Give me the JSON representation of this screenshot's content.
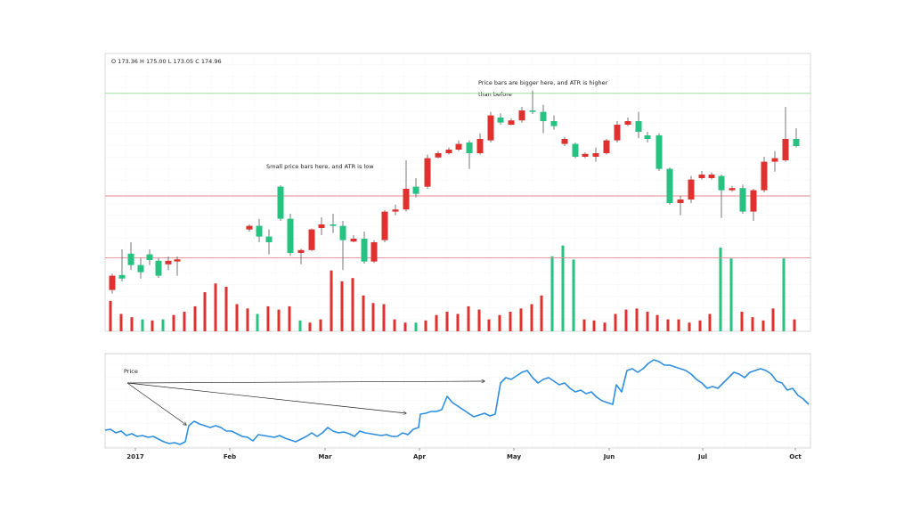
{
  "chart_data": [
    {
      "type": "candlestick",
      "header": "O 173.36 H 175.00 L 173.05 C 174.96",
      "annotations": [
        "Small price bars here, and ATR is low",
        "Price bars are bigger here, and ATR is higher",
        "than before"
      ],
      "xlim": [
        0,
        792
      ],
      "ylim": [
        148,
        187
      ],
      "up_color": "#e0312f",
      "down_color": "#26c281",
      "x": [
        8,
        19,
        29,
        40,
        50,
        60,
        71,
        81,
        162,
        173,
        184,
        197,
        208,
        220,
        232,
        243,
        256,
        267,
        279,
        291,
        302,
        314,
        326,
        338,
        349,
        362,
        374,
        386,
        397,
        409,
        421,
        433,
        444,
        456,
        468,
        480,
        492,
        504,
        516,
        528,
        539,
        551,
        563,
        575,
        587,
        599,
        609,
        622,
        634,
        646,
        658,
        670,
        681,
        692,
        704,
        716,
        728,
        740,
        752,
        764,
        776
      ],
      "open": [
        153.8,
        155.9,
        158.9,
        157.3,
        158.8,
        157.9,
        157.4,
        157.8,
        162.3,
        162.8,
        161.3,
        168.3,
        163.8,
        159.0,
        159.4,
        162.5,
        163.0,
        162.8,
        160.6,
        161.0,
        157.8,
        160.8,
        164.8,
        165.1,
        168.3,
        168.3,
        172.4,
        173.0,
        173.5,
        174.5,
        173.0,
        174.8,
        178.0,
        177.0,
        177.6,
        179.0,
        178.8,
        177.5,
        174.3,
        174.3,
        172.5,
        172.5,
        173.0,
        174.8,
        177.0,
        177.5,
        175.5,
        175.5,
        170.8,
        166.0,
        166.5,
        169.5,
        169.5,
        169.8,
        167.8,
        168.1,
        164.8,
        167.8,
        171.8,
        172.0,
        175.0
      ],
      "high": [
        156.1,
        159.5,
        160.5,
        158.3,
        159.5,
        158.3,
        158.5,
        158.5,
        163.0,
        163.8,
        162.3,
        168.5,
        164.5,
        159.6,
        162.4,
        164.0,
        164.5,
        163.5,
        161.5,
        162.0,
        160.8,
        165.0,
        165.8,
        172.0,
        169.5,
        172.8,
        173.3,
        173.8,
        174.8,
        174.8,
        175.8,
        178.8,
        178.6,
        177.9,
        179.5,
        181.8,
        179.8,
        178.3,
        175.3,
        174.5,
        173.1,
        173.8,
        175.0,
        177.5,
        178.0,
        178.8,
        176.0,
        175.8,
        171.0,
        167.0,
        169.8,
        170.5,
        170.3,
        170.0,
        168.4,
        168.6,
        168.0,
        172.5,
        173.3,
        179.5,
        176.5
      ],
      "low": [
        153.3,
        155.0,
        156.6,
        155.4,
        157.3,
        155.5,
        156.6,
        155.8,
        162.0,
        160.5,
        158.8,
        163.5,
        158.6,
        157.4,
        159.3,
        161.5,
        161.8,
        156.6,
        160.5,
        157.5,
        157.6,
        160.5,
        164.3,
        164.8,
        166.8,
        168.0,
        172.3,
        172.8,
        173.3,
        170.8,
        172.8,
        174.5,
        177.0,
        176.9,
        177.3,
        178.5,
        175.8,
        176.3,
        174.0,
        172.3,
        172.3,
        171.8,
        172.8,
        174.5,
        176.8,
        175.1,
        174.5,
        170.5,
        165.8,
        164.3,
        166.0,
        169.3,
        169.3,
        163.9,
        167.6,
        164.5,
        163.5,
        167.5,
        170.4,
        171.8,
        173.8
      ],
      "close": [
        155.8,
        155.4,
        157.3,
        156.3,
        158.0,
        155.8,
        157.9,
        158.1,
        162.8,
        161.3,
        160.5,
        163.8,
        159.0,
        159.4,
        162.3,
        163.0,
        162.8,
        160.8,
        161.0,
        157.8,
        160.5,
        164.8,
        165.1,
        168.0,
        167.3,
        172.3,
        173.0,
        173.5,
        174.3,
        173.0,
        175.0,
        178.3,
        177.3,
        177.6,
        179.0,
        178.8,
        177.5,
        176.8,
        175.0,
        172.5,
        172.9,
        173.0,
        174.8,
        177.0,
        177.5,
        176.0,
        175.0,
        170.8,
        166.0,
        166.5,
        169.3,
        170.0,
        170.0,
        167.8,
        168.1,
        164.8,
        167.8,
        171.8,
        172.3,
        175.0,
        174.0
      ],
      "reference_lines": [
        {
          "value": 181.4,
          "color": "#8fd88f"
        },
        {
          "value": 167.0,
          "color": "#e58a8a"
        },
        {
          "value": 158.3,
          "color": "#e58a8a"
        }
      ],
      "volume": {
        "ylim": [
          0,
          100
        ],
        "x": [
          6,
          18,
          30,
          42,
          53,
          65,
          77,
          89,
          101,
          112,
          124,
          136,
          148,
          160,
          171,
          183,
          195,
          207,
          219,
          230,
          242,
          254,
          266,
          278,
          290,
          301,
          313,
          325,
          337,
          349,
          360,
          372,
          384,
          396,
          408,
          420,
          431,
          443,
          455,
          467,
          479,
          490,
          502,
          514,
          526,
          538,
          549,
          561,
          573,
          585,
          597,
          609,
          620,
          632,
          644,
          656,
          668,
          679,
          691,
          703,
          715,
          727,
          739,
          750,
          762,
          774
        ],
        "values": [
          28,
          16,
          13,
          11,
          10,
          11,
          15,
          18,
          23,
          36,
          44,
          41,
          25,
          21,
          16,
          23,
          20,
          23,
          10,
          8,
          11,
          56,
          46,
          49,
          33,
          26,
          25,
          11,
          8,
          8,
          10,
          15,
          18,
          16,
          23,
          20,
          11,
          15,
          18,
          21,
          25,
          33,
          69,
          79,
          66,
          11,
          10,
          8,
          16,
          20,
          21,
          18,
          15,
          11,
          11,
          8,
          10,
          16,
          77,
          67,
          18,
          13,
          10,
          21,
          67,
          11
        ],
        "colors": [
          "#e0312f",
          "#e0312f",
          "#e0312f",
          "#26c281",
          "#e0312f",
          "#26c281",
          "#e0312f",
          "#e0312f",
          "#e0312f",
          "#e0312f",
          "#e0312f",
          "#e0312f",
          "#e0312f",
          "#e0312f",
          "#26c281",
          "#e0312f",
          "#e0312f",
          "#e0312f",
          "#26c281",
          "#e0312f",
          "#e0312f",
          "#e0312f",
          "#e0312f",
          "#e0312f",
          "#e0312f",
          "#e0312f",
          "#e0312f",
          "#e0312f",
          "#e0312f",
          "#26c281",
          "#e0312f",
          "#e0312f",
          "#e0312f",
          "#e0312f",
          "#e0312f",
          "#e0312f",
          "#e0312f",
          "#e0312f",
          "#e0312f",
          "#e0312f",
          "#e0312f",
          "#e0312f",
          "#26c281",
          "#26c281",
          "#26c281",
          "#e0312f",
          "#e0312f",
          "#e0312f",
          "#e0312f",
          "#e0312f",
          "#e0312f",
          "#e0312f",
          "#e0312f",
          "#e0312f",
          "#e0312f",
          "#e0312f",
          "#e0312f",
          "#e0312f",
          "#26c281",
          "#26c281",
          "#e0312f",
          "#e0312f",
          "#e0312f",
          "#e0312f",
          "#26c281",
          "#e0312f"
        ]
      }
    },
    {
      "type": "line",
      "annotation": "Price",
      "color": "#2e8fe0",
      "xlim": [
        0,
        792
      ],
      "ylim": [
        0,
        106
      ],
      "xticks": [
        {
          "value": 34,
          "label": "2017"
        },
        {
          "value": 140,
          "label": "Feb"
        },
        {
          "value": 247,
          "label": "Mar"
        },
        {
          "value": 353,
          "label": "Apr"
        },
        {
          "value": 459,
          "label": "May"
        },
        {
          "value": 566,
          "label": "Jun"
        },
        {
          "value": 671,
          "label": "Jul"
        },
        {
          "value": 775,
          "label": "Oct"
        }
      ],
      "x": [
        0,
        6,
        12,
        18,
        24,
        30,
        36,
        42,
        48,
        54,
        60,
        66,
        72,
        78,
        84,
        90,
        94,
        100,
        106,
        112,
        118,
        124,
        130,
        136,
        142,
        148,
        154,
        160,
        166,
        172,
        178,
        184,
        190,
        196,
        202,
        208,
        214,
        220,
        226,
        232,
        238,
        244,
        250,
        256,
        262,
        268,
        274,
        280,
        286,
        292,
        298,
        304,
        310,
        316,
        322,
        328,
        334,
        340,
        346,
        352,
        354,
        360,
        366,
        372,
        378,
        384,
        390,
        396,
        402,
        408,
        414,
        420,
        426,
        432,
        438,
        444,
        450,
        456,
        462,
        468,
        474,
        480,
        486,
        492,
        498,
        504,
        510,
        516,
        522,
        528,
        534,
        540,
        546,
        552,
        558,
        564,
        570,
        574,
        580,
        586,
        592,
        598,
        604,
        610,
        616,
        622,
        628,
        634,
        640,
        646,
        652,
        658,
        664,
        670,
        676,
        682,
        688,
        694,
        700,
        706,
        712,
        718,
        724,
        730,
        736,
        742,
        748,
        754,
        760,
        766,
        772,
        778,
        784,
        790
      ],
      "values": [
        20,
        21,
        17,
        19,
        14,
        16,
        13,
        14,
        12,
        13,
        10,
        7,
        5,
        6,
        4,
        7,
        25,
        30,
        27,
        25,
        23,
        25,
        23,
        19,
        19,
        16,
        13,
        12,
        8,
        15,
        14,
        13,
        12,
        14,
        11,
        9,
        7,
        10,
        13,
        17,
        13,
        17,
        23,
        19,
        17,
        18,
        16,
        13,
        19,
        17,
        16,
        15,
        14,
        15,
        13,
        13,
        17,
        15,
        21,
        23,
        38,
        39,
        41,
        41,
        43,
        58,
        51,
        47,
        43,
        39,
        35,
        37,
        39,
        36,
        38,
        73,
        79,
        77,
        81,
        85,
        87,
        79,
        73,
        77,
        79,
        75,
        71,
        73,
        67,
        63,
        65,
        61,
        63,
        57,
        53,
        51,
        49,
        71,
        63,
        87,
        89,
        85,
        89,
        95,
        99,
        97,
        93,
        93,
        91,
        89,
        87,
        83,
        77,
        73,
        67,
        69,
        67,
        73,
        79,
        85,
        83,
        79,
        85,
        87,
        89,
        87,
        83,
        75,
        73,
        65,
        67,
        59,
        55,
        49
      ]
    }
  ]
}
